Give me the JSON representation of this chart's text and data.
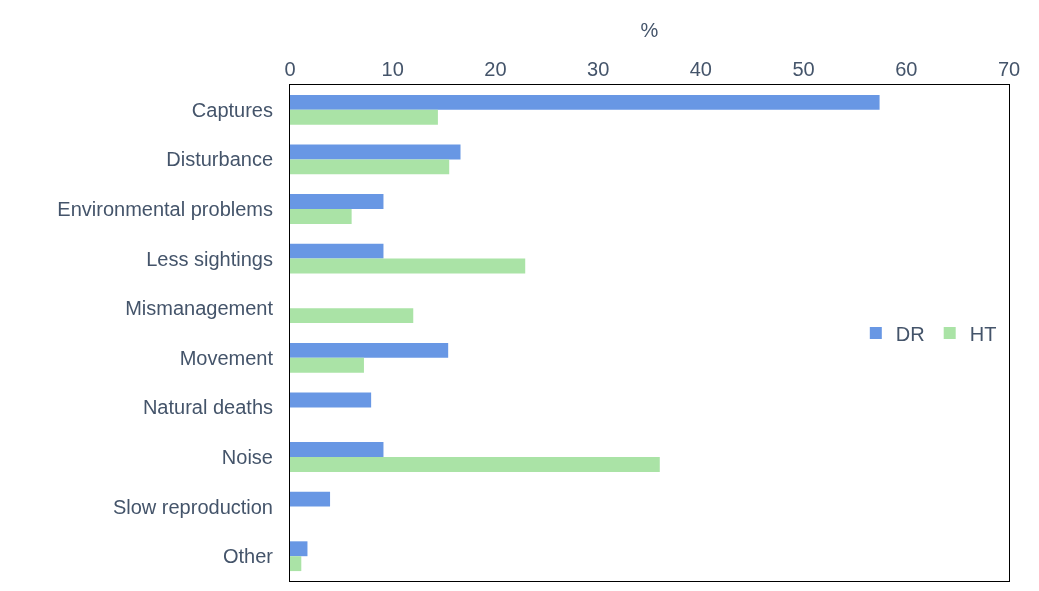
{
  "chart_data": {
    "type": "bar",
    "orientation": "horizontal",
    "xlabel": "%",
    "categories": [
      "Captures",
      "Disturbance",
      "Environmental problems",
      "Less sightings",
      "Mismanagement",
      "Movement",
      "Natural deaths",
      "Noise",
      "Slow reproduction",
      "Other"
    ],
    "series": [
      {
        "name": "DR",
        "color": "#6897e4",
        "values": [
          57.4,
          16.6,
          9.1,
          9.1,
          0,
          15.4,
          7.9,
          9.1,
          3.9,
          1.7
        ]
      },
      {
        "name": "HT",
        "color": "#aae3a6",
        "values": [
          14.4,
          15.5,
          6.0,
          22.9,
          12.0,
          7.2,
          0,
          36.0,
          0,
          1.1
        ]
      }
    ],
    "xlim": [
      0,
      70
    ],
    "xticks": [
      0,
      10,
      20,
      30,
      40,
      50,
      60,
      70
    ],
    "legend": "right"
  }
}
